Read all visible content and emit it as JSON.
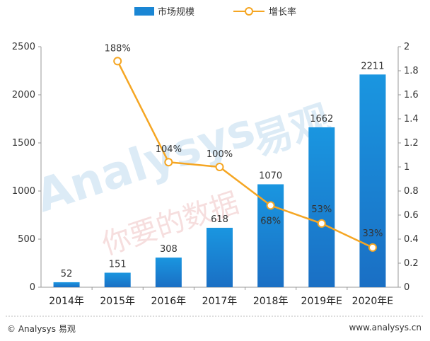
{
  "chart_data": {
    "type": "bar",
    "categories": [
      "2014年",
      "2015年",
      "2016年",
      "2017年",
      "2018年",
      "2019年E",
      "2020年E"
    ],
    "series": [
      {
        "name": "市场规模",
        "type": "bar",
        "axis": "left",
        "values": [
          52,
          151,
          308,
          618,
          1070,
          1662,
          2211
        ],
        "labels": [
          "52",
          "151",
          "308",
          "618",
          "1070",
          "1662",
          "2211"
        ]
      },
      {
        "name": "增长率",
        "type": "line",
        "axis": "right",
        "values": [
          null,
          1.88,
          1.04,
          1.0,
          0.68,
          0.53,
          0.33
        ],
        "labels": [
          "",
          "188%",
          "104%",
          "100%",
          "68%",
          "53%",
          "33%"
        ]
      }
    ],
    "y_left": {
      "min": 0,
      "max": 2500,
      "ticks": [
        0,
        500,
        1000,
        1500,
        2000,
        2500
      ]
    },
    "y_right": {
      "min": 0,
      "max": 2,
      "ticks": [
        "0",
        "0.2",
        "0.4",
        "0.6",
        "0.8",
        "1",
        "1.2",
        "1.4",
        "1.6",
        "1.8",
        "2"
      ]
    },
    "legend": "top",
    "grid": false,
    "colors": {
      "bar": "#1a86d4",
      "line": "#f5a623"
    }
  },
  "watermark": {
    "brand": "Analysys",
    "brand_cn": "易观",
    "slogan": "你要的数据"
  },
  "footer": {
    "left": "© Analysys 易观",
    "right": "www.analysys.cn"
  }
}
